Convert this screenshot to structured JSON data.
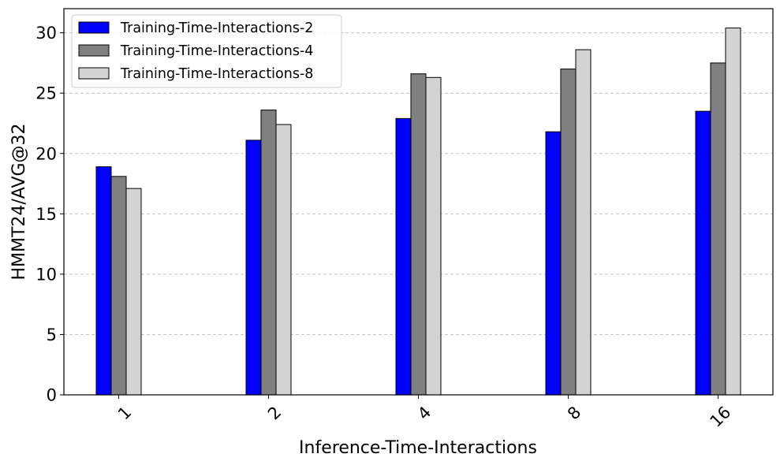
{
  "chart_data": {
    "type": "bar",
    "title": "",
    "xlabel": "Inference-Time-Interactions",
    "ylabel": "HMMT24/AVG@32",
    "categories": [
      "1",
      "2",
      "4",
      "8",
      "16"
    ],
    "ylim": [
      0,
      32
    ],
    "yticks": [
      0,
      5,
      10,
      15,
      20,
      25,
      30
    ],
    "ytick_labels": [
      "0",
      "5",
      "10",
      "15",
      "20",
      "25",
      "30"
    ],
    "grid": "y-dashed",
    "legend_position": "upper-left",
    "series": [
      {
        "name": "Training-Time-Interactions-2",
        "color": "#0000ff",
        "values": [
          18.9,
          21.1,
          22.9,
          21.8,
          23.5
        ]
      },
      {
        "name": "Training-Time-Interactions-4",
        "color": "#808080",
        "values": [
          18.1,
          23.6,
          26.6,
          27.0,
          27.5
        ]
      },
      {
        "name": "Training-Time-Interactions-8",
        "color": "#d3d3d3",
        "values": [
          17.1,
          22.4,
          26.3,
          28.6,
          30.4
        ]
      }
    ]
  }
}
